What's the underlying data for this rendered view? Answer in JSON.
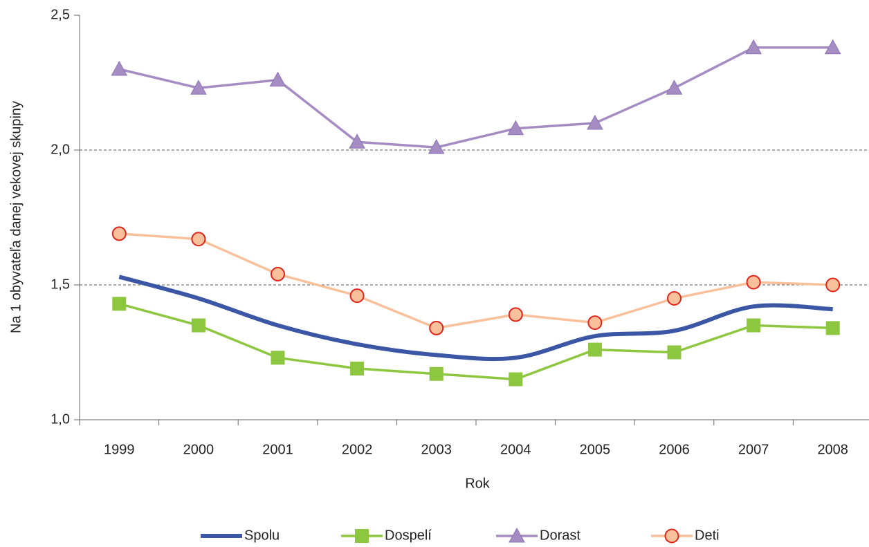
{
  "chart_data": {
    "type": "line",
    "x_label": "Rok",
    "y_label": "Na 1 obyvateľa danej vekovej skupiny",
    "categories": [
      "1999",
      "2000",
      "2001",
      "2002",
      "2003",
      "2004",
      "2005",
      "2006",
      "2007",
      "2008"
    ],
    "ylim": [
      1.0,
      2.5
    ],
    "yticks": [
      {
        "value": 1.0,
        "label": "1,0"
      },
      {
        "value": 1.5,
        "label": "1,5"
      },
      {
        "value": 2.0,
        "label": "2,0"
      },
      {
        "value": 2.5,
        "label": "2,5"
      }
    ],
    "grid": true,
    "legend": "bottom",
    "series": [
      {
        "name": "Spolu",
        "color": "#3a56a5",
        "marker": "none",
        "smooth": true,
        "values": [
          1.53,
          1.45,
          1.35,
          1.28,
          1.24,
          1.23,
          1.31,
          1.33,
          1.42,
          1.41
        ]
      },
      {
        "name": "Dospelí",
        "color": "#8dc63f",
        "marker": "square",
        "values": [
          1.43,
          1.35,
          1.23,
          1.19,
          1.17,
          1.15,
          1.26,
          1.25,
          1.35,
          1.34
        ]
      },
      {
        "name": "Dorast",
        "color": "#a58dc4",
        "marker": "triangle",
        "values": [
          2.3,
          2.23,
          2.26,
          2.03,
          2.01,
          2.08,
          2.1,
          2.23,
          2.38,
          2.38
        ]
      },
      {
        "name": "Deti",
        "color": "#f9c09c",
        "marker": "circle",
        "marker_edge": "#e2231a",
        "values": [
          1.69,
          1.67,
          1.54,
          1.46,
          1.34,
          1.39,
          1.36,
          1.45,
          1.51,
          1.5
        ]
      }
    ]
  }
}
